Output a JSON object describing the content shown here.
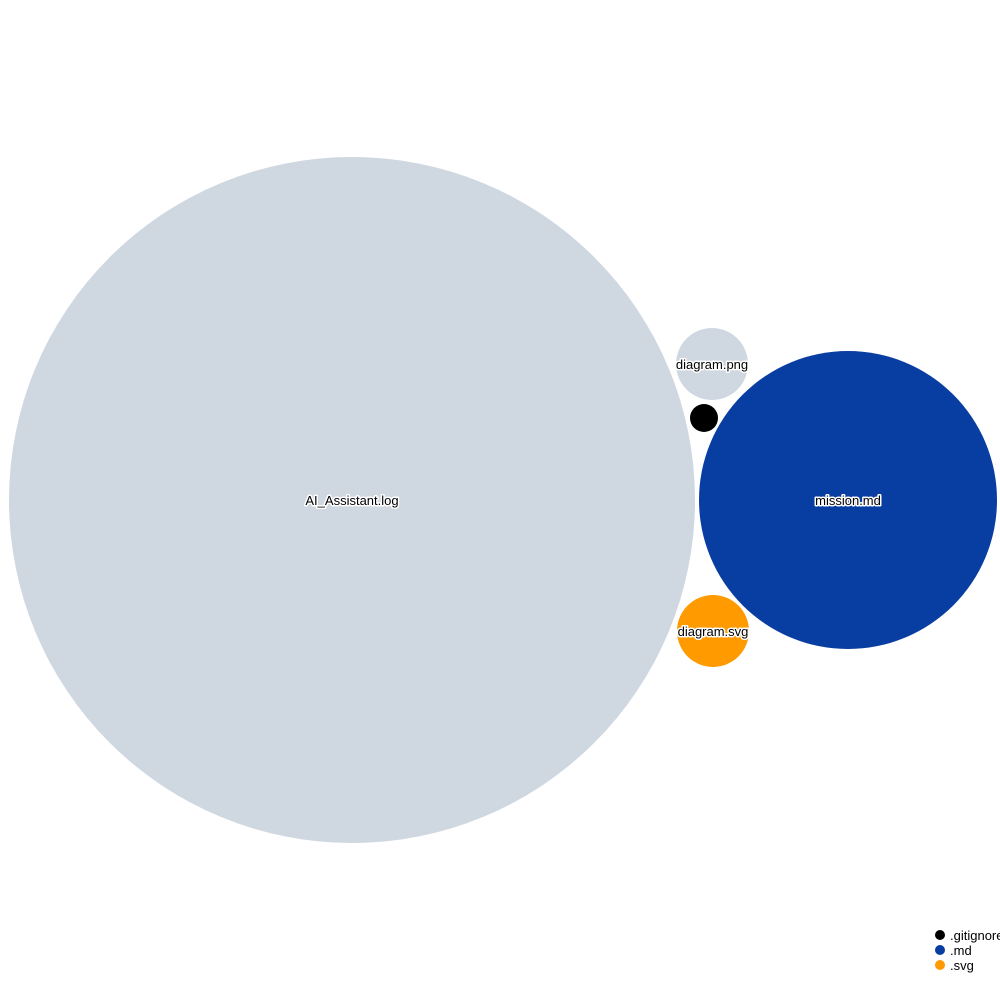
{
  "chart_data": {
    "type": "circle-packing",
    "nodes": [
      {
        "name": "AI_Assistant.log",
        "extension": ".log",
        "color": "#cfd7e0",
        "label": "AI_Assistant.log"
      },
      {
        "name": "mission.md",
        "extension": ".md",
        "color": "#083ea1",
        "label": "mission.md"
      },
      {
        "name": "diagram.png",
        "extension": ".png",
        "color": "#cfd7e0",
        "label": "diagram.png"
      },
      {
        "name": "diagram.svg",
        "extension": ".svg",
        "color": "#ff9a00",
        "label": "diagram.svg"
      },
      {
        "name": ".gitignore",
        "extension": ".gitignore",
        "color": "#000000",
        "label": ""
      }
    ],
    "legend": {
      "placement": "bottom-right",
      "entries": [
        {
          "label": ".gitignore",
          "color": "#000000"
        },
        {
          "label": ".md",
          "color": "#083ea1"
        },
        {
          "label": ".svg",
          "color": "#ff9a00"
        }
      ]
    }
  }
}
